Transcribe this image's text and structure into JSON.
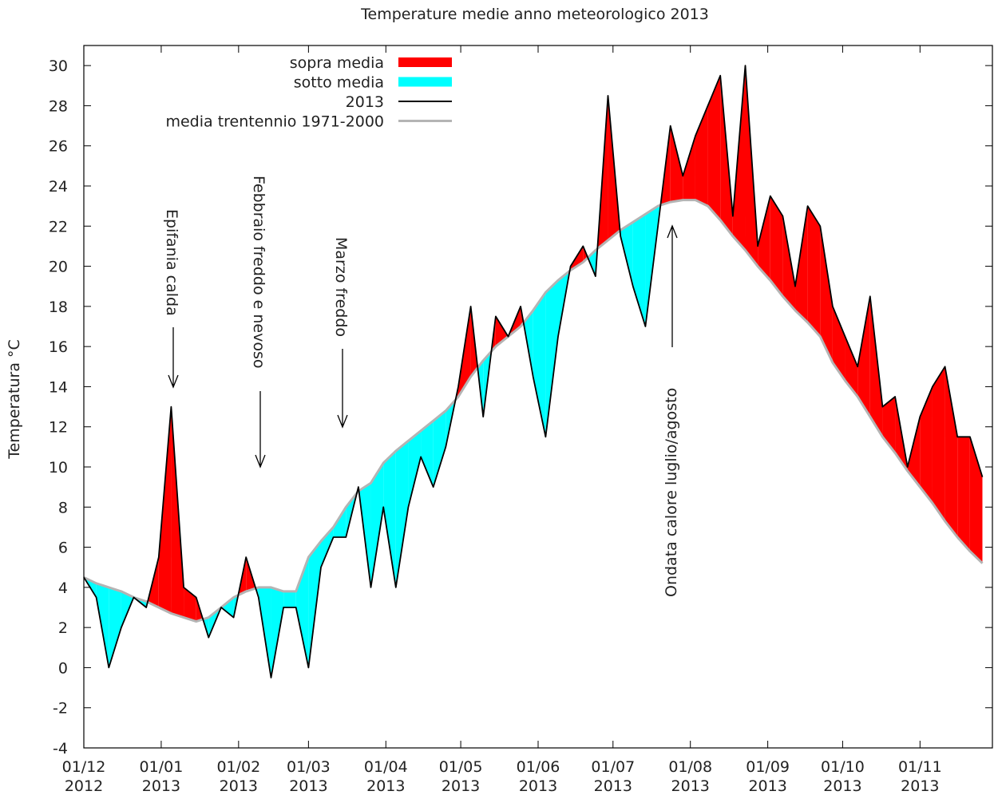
{
  "chart_data": {
    "type": "line",
    "title": "Temperature medie anno meteorologico 2013",
    "y_label": "Temperatura °C",
    "x": [
      "2012-12-01",
      "2012-12-06",
      "2012-12-11",
      "2012-12-16",
      "2012-12-21",
      "2012-12-26",
      "2012-12-31",
      "2013-01-05",
      "2013-01-10",
      "2013-01-15",
      "2013-01-20",
      "2013-01-25",
      "2013-01-30",
      "2013-02-04",
      "2013-02-09",
      "2013-02-14",
      "2013-02-19",
      "2013-02-24",
      "2013-03-01",
      "2013-03-06",
      "2013-03-11",
      "2013-03-16",
      "2013-03-21",
      "2013-03-26",
      "2013-03-31",
      "2013-04-05",
      "2013-04-10",
      "2013-04-15",
      "2013-04-20",
      "2013-04-25",
      "2013-04-30",
      "2013-05-05",
      "2013-05-10",
      "2013-05-15",
      "2013-05-20",
      "2013-05-25",
      "2013-05-30",
      "2013-06-04",
      "2013-06-09",
      "2013-06-14",
      "2013-06-19",
      "2013-06-24",
      "2013-06-29",
      "2013-07-04",
      "2013-07-09",
      "2013-07-14",
      "2013-07-19",
      "2013-07-24",
      "2013-07-29",
      "2013-08-03",
      "2013-08-08",
      "2013-08-13",
      "2013-08-18",
      "2013-08-23",
      "2013-08-28",
      "2013-09-02",
      "2013-09-07",
      "2013-09-12",
      "2013-09-17",
      "2013-09-22",
      "2013-09-27",
      "2013-10-02",
      "2013-10-07",
      "2013-10-12",
      "2013-10-17",
      "2013-10-22",
      "2013-10-27",
      "2013-11-01",
      "2013-11-06",
      "2013-11-11",
      "2013-11-16",
      "2013-11-21",
      "2013-11-26"
    ],
    "series": [
      {
        "name": "2013",
        "color": "#000000",
        "values": [
          4.5,
          3.5,
          0.0,
          2.0,
          3.5,
          3.0,
          5.5,
          13.0,
          4.0,
          3.5,
          1.5,
          3.0,
          2.5,
          5.5,
          3.5,
          -0.5,
          3.0,
          3.0,
          0.0,
          5.0,
          6.5,
          6.5,
          9.0,
          4.0,
          8.0,
          4.0,
          8.0,
          10.5,
          9.0,
          11.0,
          14.0,
          18.0,
          12.5,
          17.5,
          16.5,
          18.0,
          14.5,
          11.5,
          16.5,
          20.0,
          21.0,
          19.5,
          28.5,
          21.5,
          19.0,
          17.0,
          22.0,
          27.0,
          24.5,
          26.5,
          28.0,
          29.5,
          22.5,
          30.0,
          21.0,
          23.5,
          22.5,
          19.0,
          23.0,
          22.0,
          18.0,
          16.5,
          15.0,
          18.5,
          13.0,
          13.5,
          10.0,
          12.5,
          14.0,
          15.0,
          11.5,
          11.5,
          9.5
        ]
      },
      {
        "name": "media trentennio 1971-2000",
        "color": "#b4b4b4",
        "values": [
          4.5,
          4.2,
          4.0,
          3.8,
          3.5,
          3.3,
          3.0,
          2.7,
          2.5,
          2.3,
          2.5,
          3.0,
          3.5,
          3.8,
          4.0,
          4.0,
          3.8,
          3.8,
          5.5,
          6.3,
          7.0,
          8.0,
          8.8,
          9.2,
          10.2,
          10.8,
          11.3,
          11.8,
          12.3,
          12.8,
          13.5,
          14.5,
          15.3,
          16.0,
          16.5,
          17.0,
          17.8,
          18.7,
          19.3,
          19.8,
          20.2,
          20.8,
          21.3,
          21.8,
          22.2,
          22.6,
          23.0,
          23.2,
          23.3,
          23.3,
          23.0,
          22.3,
          21.5,
          20.8,
          20.0,
          19.3,
          18.5,
          17.8,
          17.2,
          16.5,
          15.2,
          14.3,
          13.5,
          12.5,
          11.5,
          10.7,
          9.8,
          9.0,
          8.2,
          7.3,
          6.5,
          5.8,
          5.2
        ]
      }
    ],
    "fills": [
      {
        "name": "sopra media",
        "color": "#ff0000"
      },
      {
        "name": "sotto media",
        "color": "#00ffff"
      }
    ],
    "xlim": [
      "2012-12-01",
      "2013-11-30"
    ],
    "xticks": [
      {
        "value": "2012-12-01",
        "label": "01/12\n2012"
      },
      {
        "value": "2013-01-01",
        "label": "01/01\n2013"
      },
      {
        "value": "2013-02-01",
        "label": "01/02\n2013"
      },
      {
        "value": "2013-03-01",
        "label": "01/03\n2013"
      },
      {
        "value": "2013-04-01",
        "label": "01/04\n2013"
      },
      {
        "value": "2013-05-01",
        "label": "01/05\n2013"
      },
      {
        "value": "2013-06-01",
        "label": "01/06\n2013"
      },
      {
        "value": "2013-07-01",
        "label": "01/07\n2013"
      },
      {
        "value": "2013-08-01",
        "label": "01/08\n2013"
      },
      {
        "value": "2013-09-01",
        "label": "01/09\n2013"
      },
      {
        "value": "2013-10-01",
        "label": "01/10\n2013"
      },
      {
        "value": "2013-11-01",
        "label": "01/11\n2013"
      }
    ],
    "ylim": [
      -4,
      31
    ],
    "yticks": [
      -4,
      -2,
      0,
      2,
      4,
      6,
      8,
      10,
      12,
      14,
      16,
      18,
      20,
      22,
      24,
      26,
      28,
      30
    ],
    "annotations": [
      "Epifania calda",
      "Febbraio freddo e nevoso",
      "Marzo freddo",
      "Ondata calore luglio/agosto"
    ],
    "legend": "top-left"
  }
}
